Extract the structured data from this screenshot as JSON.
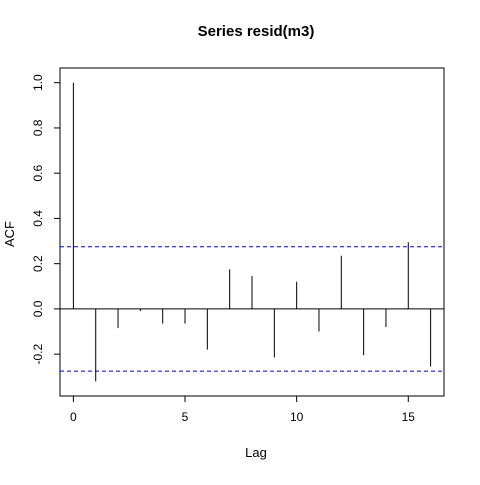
{
  "chart_data": {
    "type": "bar",
    "title": "Series  resid(m3)",
    "xlabel": "Lag",
    "ylabel": "ACF",
    "xlim": [
      -0.6,
      16.6
    ],
    "ylim": [
      -0.385,
      1.065
    ],
    "x_ticks": [
      0,
      5,
      10,
      15
    ],
    "y_ticks": [
      -0.2,
      0.0,
      0.2,
      0.4,
      0.6,
      0.8,
      1.0
    ],
    "y_tick_labels": [
      "-0.2",
      "0.0",
      "0.2",
      "0.4",
      "0.6",
      "0.8",
      "1.0"
    ],
    "grid": false,
    "lags": [
      0,
      1,
      2,
      3,
      4,
      5,
      6,
      7,
      8,
      9,
      10,
      11,
      12,
      13,
      14,
      15,
      16
    ],
    "acf": [
      1.0,
      -0.32,
      -0.085,
      -0.01,
      -0.065,
      -0.065,
      -0.18,
      0.175,
      0.145,
      -0.215,
      0.12,
      -0.1,
      0.235,
      -0.205,
      -0.08,
      0.295,
      -0.255
    ],
    "confidence_bounds": [
      0.275,
      -0.275
    ],
    "colors": {
      "spikes": "#000000",
      "zero_line": "#000000",
      "confidence": "#0000cc"
    }
  }
}
